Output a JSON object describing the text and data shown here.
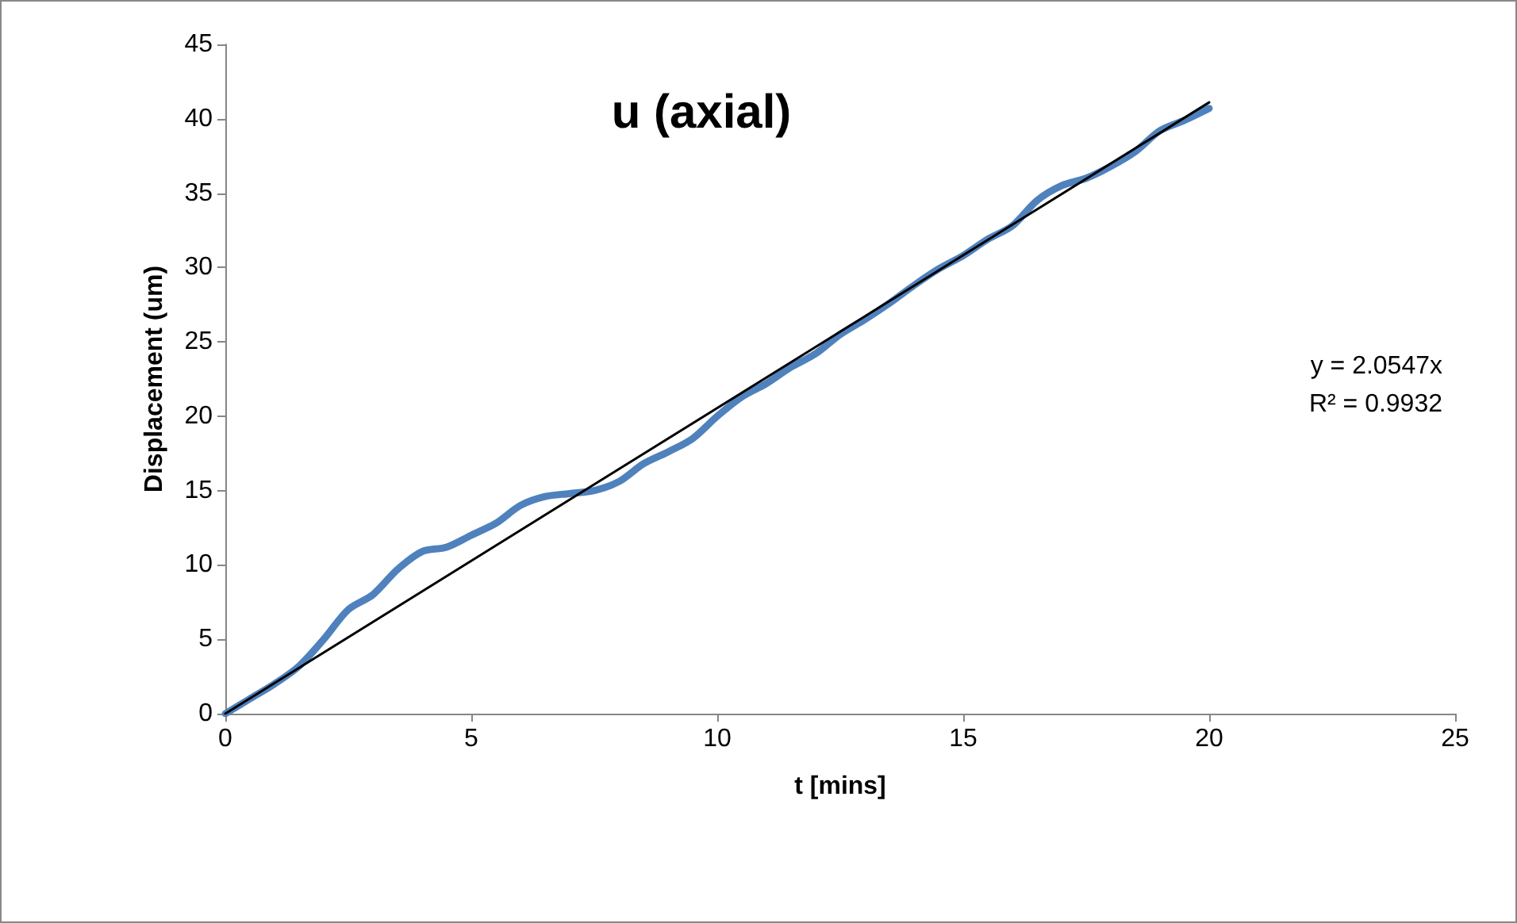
{
  "chart_data": {
    "type": "line",
    "title": "u (axial)",
    "xlabel": "t [mins]",
    "ylabel": "Displacement (um)",
    "annotations": [
      "y = 2.0547x",
      "R² = 0.9932"
    ],
    "xlim": [
      0,
      25
    ],
    "xticks": [
      0,
      5,
      10,
      15,
      20,
      25
    ],
    "ylim": [
      0,
      45
    ],
    "yticks": [
      0,
      5,
      10,
      15,
      20,
      25,
      30,
      35,
      40,
      45
    ],
    "marker": "none",
    "line_style": "solid",
    "series": [
      {
        "color": "#4f81bd",
        "x": [
          0,
          0.5,
          1,
          1.5,
          2,
          2.5,
          3,
          3.5,
          4,
          4.5,
          5,
          5.5,
          6,
          6.5,
          7,
          7.5,
          8,
          8.5,
          9,
          9.5,
          10,
          10.5,
          11,
          11.5,
          12,
          12.5,
          13,
          13.5,
          14,
          14.5,
          15,
          15.5,
          16,
          16.5,
          17,
          17.5,
          18,
          18.5,
          19,
          19.5,
          20
        ],
        "values": [
          0,
          1,
          2,
          3.2,
          5,
          7,
          8,
          9.7,
          10.9,
          11.2,
          12,
          12.8,
          14,
          14.6,
          14.8,
          15,
          15.6,
          16.8,
          17.6,
          18.5,
          20,
          21.3,
          22.2,
          23.3,
          24.2,
          25.5,
          26.5,
          27.6,
          28.8,
          29.9,
          30.8,
          31.9,
          32.8,
          34.5,
          35.5,
          36,
          36.8,
          37.8,
          39.2,
          39.9,
          40.7
        ]
      },
      {
        "type": "line",
        "color": "#000000",
        "x": [
          0,
          20
        ],
        "values": [
          0,
          41.1
        ]
      }
    ]
  }
}
